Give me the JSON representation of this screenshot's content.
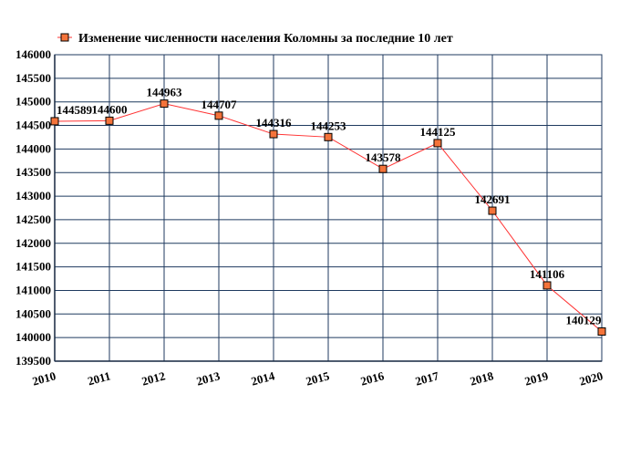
{
  "chart_data": {
    "type": "line",
    "title": "",
    "xlabel": "",
    "ylabel": "",
    "x": [
      "2010",
      "2011",
      "2012",
      "2013",
      "2014",
      "2015",
      "2016",
      "2017",
      "2018",
      "2019",
      "2020"
    ],
    "series": [
      {
        "name": "Изменение численности населения Коломны за последние 10 лет",
        "values": [
          144589,
          144600,
          144963,
          144707,
          144316,
          144253,
          143578,
          144125,
          142691,
          141106,
          140129
        ],
        "labels": [
          "144589",
          "144600",
          "144963",
          "144707",
          "144316",
          "144253",
          "143578",
          "144125",
          "142691",
          "141106",
          "140129"
        ],
        "color": "#ff3333",
        "marker_fill": "#f4733a",
        "marker_stroke": "#000000"
      }
    ],
    "y_ticks": [
      "139500",
      "140000",
      "140500",
      "141000",
      "141500",
      "142000",
      "142500",
      "143000",
      "143500",
      "144000",
      "144500",
      "145000",
      "145500",
      "146000"
    ],
    "ylim": [
      139500,
      146000
    ],
    "grid": true,
    "grid_color": "#1f3a5f",
    "legend_position": "top"
  }
}
